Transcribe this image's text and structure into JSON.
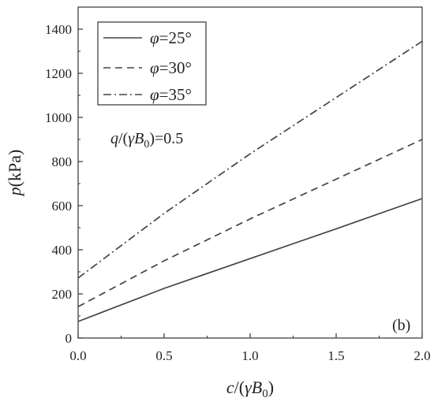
{
  "chart_data": {
    "type": "line",
    "xlim": [
      0,
      2
    ],
    "ylim": [
      0,
      1500
    ],
    "x_ticks": [
      "0.0",
      "0.5",
      "1.0",
      "1.5",
      "2.0"
    ],
    "y_ticks": [
      "0",
      "200",
      "400",
      "600",
      "800",
      "1000",
      "1200",
      "1400"
    ],
    "ylabel": {
      "var": "p",
      "unit": "(kPa)"
    },
    "xlabel": {
      "var": "c",
      "open": "/(",
      "gamma": "γ",
      "B": "B",
      "sub": "0",
      "close": ")"
    },
    "annotation": {
      "q": "q",
      "open": "/(",
      "gamma": "γ",
      "B": "B",
      "sub": "0",
      "close": ")",
      "value": "=0.5"
    },
    "panel_label": "(b)",
    "legend_position": "top-left",
    "series": [
      {
        "name": "φ=25°",
        "phi": "φ",
        "value": "=25°",
        "style": "solid",
        "x": [
          0,
          0.5,
          1.0,
          1.5,
          2.0
        ],
        "y": [
          75,
          225,
          360,
          495,
          632
        ]
      },
      {
        "name": "φ=30°",
        "phi": "φ",
        "value": "=30°",
        "style": "dashed",
        "x": [
          0,
          0.5,
          1.0,
          1.5,
          2.0
        ],
        "y": [
          142,
          350,
          540,
          720,
          900
        ]
      },
      {
        "name": "φ=35°",
        "phi": "φ",
        "value": "=35°",
        "style": "dashdot",
        "x": [
          0,
          0.5,
          1.0,
          1.5,
          2.0
        ],
        "y": [
          272,
          565,
          835,
          1090,
          1345
        ]
      }
    ]
  }
}
